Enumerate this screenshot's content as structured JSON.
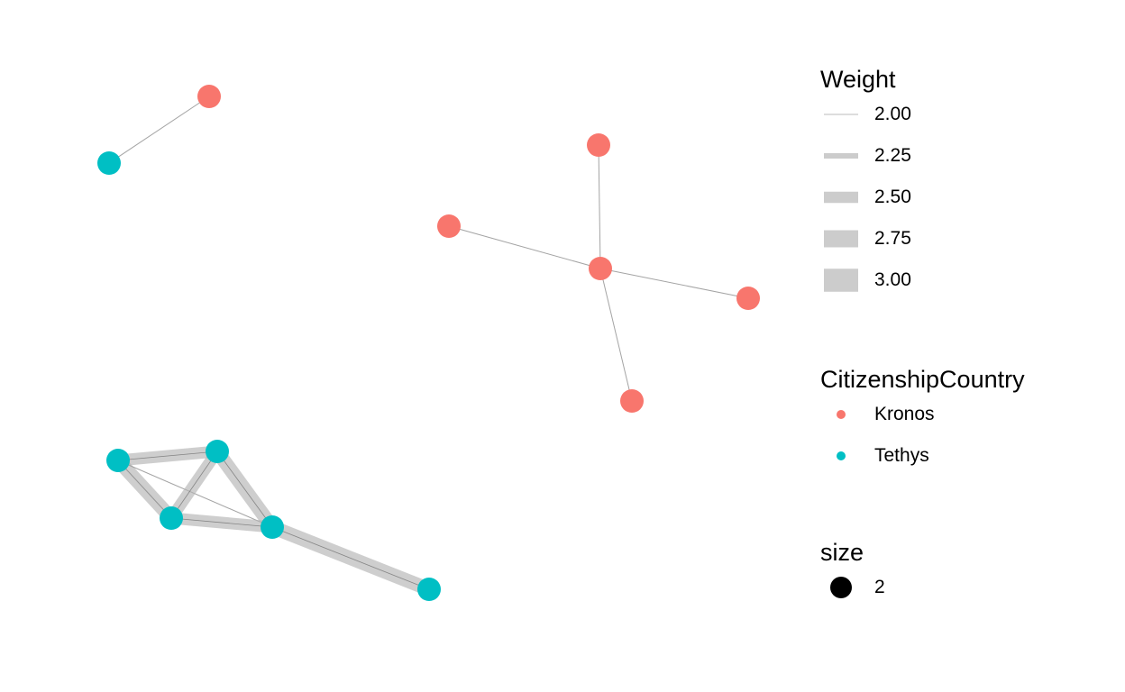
{
  "colors": {
    "kronos": "#F8766D",
    "tethys": "#00BFC4",
    "edge": "#aaaaaa",
    "edge_fill": "#b4b4b4"
  },
  "nodes": [
    {
      "id": "k1",
      "group": "Kronos"
    },
    {
      "id": "t1",
      "group": "Tethys"
    },
    {
      "id": "k2",
      "group": "Kronos"
    },
    {
      "id": "k3",
      "group": "Kronos"
    },
    {
      "id": "k4",
      "group": "Kronos"
    },
    {
      "id": "k5",
      "group": "Kronos"
    },
    {
      "id": "k6",
      "group": "Kronos"
    },
    {
      "id": "t2",
      "group": "Tethys"
    },
    {
      "id": "t3",
      "group": "Tethys"
    },
    {
      "id": "t4",
      "group": "Tethys"
    },
    {
      "id": "t5",
      "group": "Tethys"
    },
    {
      "id": "t6",
      "group": "Tethys"
    }
  ],
  "edges": [
    {
      "from": "k1",
      "to": "t1",
      "weight": 2.0
    },
    {
      "from": "k4",
      "to": "k2",
      "weight": 2.0
    },
    {
      "from": "k4",
      "to": "k3",
      "weight": 2.0
    },
    {
      "from": "k4",
      "to": "k5",
      "weight": 2.0
    },
    {
      "from": "k4",
      "to": "k6",
      "weight": 2.0
    },
    {
      "from": "t2",
      "to": "t3",
      "weight": 2.75
    },
    {
      "from": "t2",
      "to": "t4",
      "weight": 3.0
    },
    {
      "from": "t2",
      "to": "t4",
      "weight": 2.0
    },
    {
      "from": "t2",
      "to": "t5",
      "weight": 2.0
    },
    {
      "from": "t3",
      "to": "t4",
      "weight": 2.75
    },
    {
      "from": "t3",
      "to": "t5",
      "weight": 3.0
    },
    {
      "from": "t4",
      "to": "t5",
      "weight": 2.75
    },
    {
      "from": "t5",
      "to": "t6",
      "weight": 3.0
    }
  ],
  "legend": {
    "weight": {
      "title": "Weight",
      "entries": [
        {
          "label": "2.00",
          "value": 2.0
        },
        {
          "label": "2.25",
          "value": 2.25
        },
        {
          "label": "2.50",
          "value": 2.5
        },
        {
          "label": "2.75",
          "value": 2.75
        },
        {
          "label": "3.00",
          "value": 3.0
        }
      ]
    },
    "country": {
      "title": "CitizenshipCountry",
      "entries": [
        {
          "label": "Kronos",
          "color": "#F8766D"
        },
        {
          "label": "Tethys",
          "color": "#00BFC4"
        }
      ]
    },
    "size": {
      "title": "size",
      "entries": [
        {
          "label": "2"
        }
      ]
    }
  }
}
